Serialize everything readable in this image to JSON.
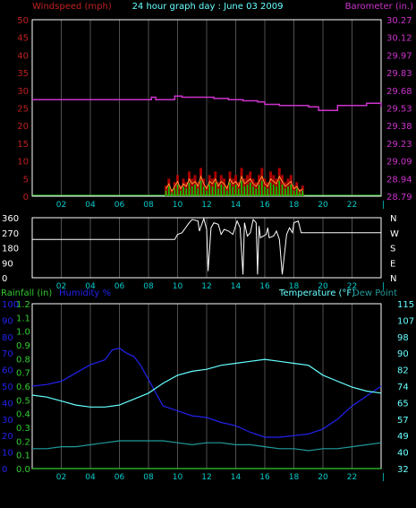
{
  "title": "24 hour graph day : June 03 2009",
  "colors": {
    "background": "#000000",
    "frame": "#ffffff",
    "grid": "#505050",
    "wind_label": "#c02020",
    "wind_bar": "#aa0000",
    "gust": "#ff9933",
    "wind_avg": "#00cc00",
    "baro": "#cc33cc",
    "direction": "#ffffff",
    "rain": "#33cc33",
    "humidity": "#2222ee",
    "temperature": "#66ffff",
    "dew_point": "#229999",
    "x_ticks": "#00cccc",
    "title": "#66ffff"
  },
  "chart_data": [
    {
      "type": "bar",
      "panel": "wind-barometer",
      "axes": {
        "left": {
          "label": "Windspeed (mph)",
          "ticks": [
            "50",
            "45",
            "40",
            "35",
            "30",
            "25",
            "20",
            "15",
            "10",
            "5",
            "0"
          ],
          "range": [
            0,
            50
          ]
        },
        "right": {
          "label": "Barometer (in.)",
          "ticks": [
            "30.27",
            "30.12",
            "29.97",
            "29.83",
            "29.68",
            "29.53",
            "29.38",
            "29.23",
            "29.09",
            "28.94",
            "28.79"
          ],
          "range": [
            28.79,
            30.27
          ]
        }
      },
      "x_ticks": [
        "02",
        "04",
        "06",
        "08",
        "10",
        "12",
        "14",
        "16",
        "18",
        "20",
        "22"
      ],
      "grid": true,
      "series": [
        {
          "name": "Barometer (in.)",
          "axis": "right",
          "x": [
            0,
            8,
            8.2,
            8.5,
            9.5,
            9.8,
            10.3,
            12.5,
            13.5,
            14.5,
            15.5,
            16,
            17,
            18,
            19,
            19.7,
            21,
            22.5,
            23,
            24
          ],
          "values": [
            29.6,
            29.6,
            29.62,
            29.6,
            29.6,
            29.63,
            29.62,
            29.61,
            29.6,
            29.59,
            29.58,
            29.56,
            29.55,
            29.55,
            29.54,
            29.51,
            29.55,
            29.55,
            29.57,
            29.54
          ]
        },
        {
          "name": "Wind speed",
          "axis": "left",
          "x": [
            9.2,
            9.4,
            9.6,
            9.8,
            10,
            10.2,
            10.4,
            10.6,
            10.8,
            11,
            11.2,
            11.4,
            11.6,
            11.8,
            12,
            12.2,
            12.4,
            12.6,
            12.8,
            13,
            13.2,
            13.4,
            13.6,
            13.8,
            14,
            14.2,
            14.4,
            14.6,
            14.8,
            15,
            15.2,
            15.4,
            15.6,
            15.8,
            16,
            16.2,
            16.4,
            16.6,
            16.8,
            17,
            17.2,
            17.4,
            17.6,
            17.8,
            18,
            18.2,
            18.4,
            18.6
          ],
          "values": [
            3,
            5,
            2,
            4,
            6,
            3,
            5,
            4,
            7,
            5,
            6,
            4,
            8,
            5,
            3,
            6,
            5,
            7,
            4,
            6,
            5,
            3,
            7,
            5,
            6,
            4,
            8,
            5,
            6,
            7,
            5,
            4,
            6,
            8,
            5,
            4,
            7,
            6,
            5,
            8,
            6,
            4,
            5,
            6,
            3,
            4,
            2,
            3
          ]
        }
      ]
    },
    {
      "type": "line",
      "panel": "wind-direction",
      "axes": {
        "left": {
          "ticks": [
            "360",
            "270",
            "180",
            "90",
            "0"
          ],
          "range": [
            0,
            360
          ]
        },
        "right": {
          "ticks": [
            "N",
            "W",
            "S",
            "E",
            "N"
          ]
        }
      },
      "x_ticks": [
        "02",
        "04",
        "06",
        "08",
        "10",
        "12",
        "14",
        "16",
        "18",
        "20",
        "22"
      ],
      "grid": true,
      "series": [
        {
          "name": "Wind direction",
          "x": [
            0,
            9.8,
            10,
            10.3,
            10.8,
            11,
            11.4,
            11.5,
            11.8,
            12,
            12.1,
            12.3,
            12.5,
            12.8,
            13,
            13.2,
            13.5,
            13.8,
            14.1,
            14.3,
            14.5,
            14.6,
            14.8,
            15,
            15.2,
            15.4,
            15.5,
            15.6,
            15.7,
            15.9,
            16.1,
            16.2,
            16.3,
            16.6,
            16.8,
            17,
            17.2,
            17.5,
            17.7,
            17.9,
            18,
            18.3,
            18.5,
            19,
            24
          ],
          "values": [
            230,
            230,
            260,
            270,
            330,
            350,
            340,
            280,
            355,
            290,
            40,
            300,
            330,
            320,
            260,
            290,
            280,
            260,
            340,
            300,
            20,
            330,
            250,
            270,
            350,
            330,
            20,
            310,
            240,
            250,
            260,
            300,
            240,
            250,
            280,
            230,
            20,
            260,
            300,
            270,
            330,
            340,
            270,
            270,
            270
          ]
        }
      ]
    },
    {
      "type": "line",
      "panel": "temperature-humidity",
      "axes": {
        "left_rain": {
          "label": "Rainfall (in)",
          "ticks": [
            "1.2",
            "1.1",
            "1.0",
            "0.9",
            "0.8",
            "0.7",
            "0.6",
            "0.5",
            "0.4",
            "0.3",
            "0.2",
            "0.1",
            "0.0"
          ],
          "range": [
            0,
            1.2
          ]
        },
        "left_humidity": {
          "label": "Humidity %",
          "ticks": [
            "100",
            "90",
            "80",
            "70",
            "60",
            "50",
            "40",
            "30",
            "20",
            "10",
            "0"
          ],
          "range": [
            0,
            100
          ]
        },
        "right": {
          "label": "Temperature (°F)",
          "label2": "Dew Point",
          "ticks": [
            "115",
            "107",
            "98",
            "90",
            "82",
            "74",
            "65",
            "57",
            "49",
            "40",
            "32"
          ],
          "range": [
            32,
            115
          ]
        }
      },
      "x_ticks": [
        "02",
        "04",
        "06",
        "08",
        "10",
        "12",
        "14",
        "16",
        "18",
        "20",
        "22"
      ],
      "grid": true,
      "series": [
        {
          "name": "Humidity %",
          "axis": "left_humidity",
          "x": [
            0,
            1,
            2,
            3,
            4,
            5,
            5.5,
            6,
            6.5,
            7,
            7.5,
            8,
            8.5,
            9,
            10,
            11,
            12,
            13,
            14,
            15,
            16,
            17,
            18,
            19,
            20,
            21,
            22,
            23,
            24
          ],
          "values": [
            50,
            51,
            53,
            58,
            63,
            66,
            72,
            73,
            70,
            68,
            62,
            54,
            46,
            38,
            35,
            32,
            31,
            28,
            26,
            22,
            19,
            19,
            20,
            21,
            24,
            30,
            38,
            44,
            50
          ]
        },
        {
          "name": "Temperature (°F)",
          "axis": "right",
          "x": [
            0,
            1,
            2,
            3,
            4,
            5,
            6,
            7,
            8,
            9,
            10,
            11,
            12,
            13,
            14,
            15,
            16,
            17,
            18,
            19,
            20,
            21,
            22,
            23,
            24
          ],
          "values": [
            69,
            68,
            66,
            64,
            63,
            63,
            64,
            67,
            70,
            75,
            79,
            81,
            82,
            84,
            85,
            86,
            87,
            86,
            85,
            84,
            79,
            76,
            73,
            71,
            70
          ]
        },
        {
          "name": "Dew Point",
          "axis": "right",
          "x": [
            0,
            1,
            2,
            3,
            4,
            5,
            6,
            7,
            8,
            9,
            10,
            11,
            12,
            13,
            14,
            15,
            16,
            17,
            18,
            19,
            20,
            21,
            22,
            23,
            24
          ],
          "values": [
            42,
            42,
            43,
            43,
            44,
            45,
            46,
            46,
            46,
            46,
            45,
            44,
            45,
            45,
            44,
            44,
            43,
            42,
            42,
            41,
            42,
            42,
            43,
            44,
            45
          ]
        },
        {
          "name": "Rainfall (in)",
          "axis": "left_rain",
          "x": [
            0,
            24
          ],
          "values": [
            0.0,
            0.0
          ]
        }
      ]
    }
  ]
}
